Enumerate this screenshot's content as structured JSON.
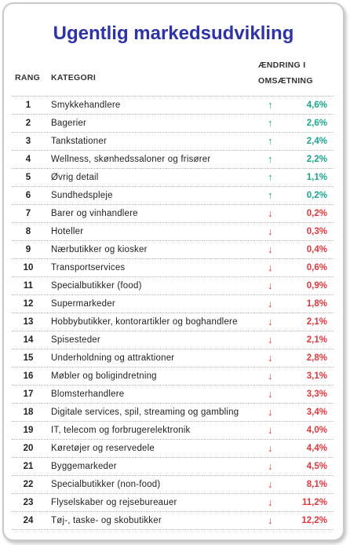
{
  "title": "Ugentlig markedsudvikling",
  "headers": {
    "rank": "RANG",
    "category": "KATEGORI",
    "change_line1": "ÆNDRING I",
    "change_line2": "OMSÆTNING"
  },
  "colors": {
    "title": "#2e33a6",
    "up": "#19a58e",
    "down": "#e0373c"
  },
  "rows": [
    {
      "rank": "1",
      "category": "Smykkehandlere",
      "direction": "up",
      "arrow": "↑",
      "change": "4,6%"
    },
    {
      "rank": "2",
      "category": "Bagerier",
      "direction": "up",
      "arrow": "↑",
      "change": "2,6%"
    },
    {
      "rank": "3",
      "category": "Tankstationer",
      "direction": "up",
      "arrow": "↑",
      "change": "2,4%"
    },
    {
      "rank": "4",
      "category": "Wellness, skønhedssaloner og frisører",
      "direction": "up",
      "arrow": "↑",
      "change": "2,2%"
    },
    {
      "rank": "5",
      "category": "Øvrig detail",
      "direction": "up",
      "arrow": "↑",
      "change": "1,1%"
    },
    {
      "rank": "6",
      "category": "Sundhedspleje",
      "direction": "up",
      "arrow": "↑",
      "change": "0,2%"
    },
    {
      "rank": "7",
      "category": "Barer og vinhandlere",
      "direction": "down",
      "arrow": "↓",
      "change": "0,2%"
    },
    {
      "rank": "8",
      "category": "Hoteller",
      "direction": "down",
      "arrow": "↓",
      "change": "0,3%"
    },
    {
      "rank": "9",
      "category": "Nærbutikker og kiosker",
      "direction": "down",
      "arrow": "↓",
      "change": "0,4%"
    },
    {
      "rank": "10",
      "category": "Transportservices",
      "direction": "down",
      "arrow": "↓",
      "change": "0,6%"
    },
    {
      "rank": "11",
      "category": "Specialbutikker (food)",
      "direction": "down",
      "arrow": "↓",
      "change": "0,9%"
    },
    {
      "rank": "12",
      "category": "Supermarkeder",
      "direction": "down",
      "arrow": "↓",
      "change": "1,8%"
    },
    {
      "rank": "13",
      "category": "Hobbybutikker, kontorartikler og boghandlere",
      "direction": "down",
      "arrow": "↓",
      "change": "2,1%"
    },
    {
      "rank": "14",
      "category": "Spisesteder",
      "direction": "down",
      "arrow": "↓",
      "change": "2,1%"
    },
    {
      "rank": "15",
      "category": "Underholdning og attraktioner",
      "direction": "down",
      "arrow": "↓",
      "change": "2,8%"
    },
    {
      "rank": "16",
      "category": "Møbler og boligindretning",
      "direction": "down",
      "arrow": "↓",
      "change": "3,1%"
    },
    {
      "rank": "17",
      "category": "Blomsterhandlere",
      "direction": "down",
      "arrow": "↓",
      "change": "3,3%"
    },
    {
      "rank": "18",
      "category": "Digitale services, spil, streaming og gambling",
      "direction": "down",
      "arrow": "↓",
      "change": "3,4%"
    },
    {
      "rank": "19",
      "category": "IT, telecom og forbrugerelektronik",
      "direction": "down",
      "arrow": "↓",
      "change": "4,0%"
    },
    {
      "rank": "20",
      "category": "Køretøjer og reservedele",
      "direction": "down",
      "arrow": "↓",
      "change": "4,4%"
    },
    {
      "rank": "21",
      "category": "Byggemarkeder",
      "direction": "down",
      "arrow": "↓",
      "change": "4,5%"
    },
    {
      "rank": "22",
      "category": "Specialbutikker (non-food)",
      "direction": "down",
      "arrow": "↓",
      "change": "8,1%"
    },
    {
      "rank": "23",
      "category": "Flyselskaber og rejsebureauer",
      "direction": "down",
      "arrow": "↓",
      "change": "11,2%"
    },
    {
      "rank": "24",
      "category": "Tøj-, taske- og skobutikker",
      "direction": "down",
      "arrow": "↓",
      "change": "12,2%"
    }
  ]
}
